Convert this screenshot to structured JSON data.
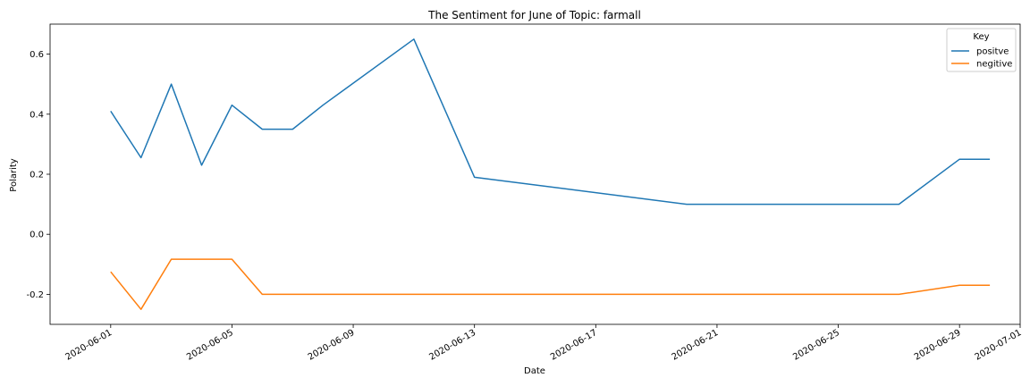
{
  "chart_data": {
    "type": "line",
    "title": "The Sentiment for June of Topic: farmall",
    "xlabel": "Date",
    "ylabel": "Polarity",
    "x_range": [
      "2020-05-30",
      "2020-07-01"
    ],
    "ylim": [
      -0.3,
      0.7
    ],
    "x_ticks": [
      "2020-06-01",
      "2020-06-05",
      "2020-06-09",
      "2020-06-13",
      "2020-06-17",
      "2020-06-21",
      "2020-06-25",
      "2020-06-29",
      "2020-07-01"
    ],
    "y_ticks": [
      -0.2,
      0.0,
      0.2,
      0.4,
      0.6
    ],
    "grid": false,
    "legend": {
      "title": "Key",
      "placement": "top-right"
    },
    "series": [
      {
        "name": "positve",
        "color": "#1f77b4",
        "points": [
          [
            "2020-06-01",
            0.41
          ],
          [
            "2020-06-02",
            0.255
          ],
          [
            "2020-06-03",
            0.5
          ],
          [
            "2020-06-04",
            0.23
          ],
          [
            "2020-06-05",
            0.43
          ],
          [
            "2020-06-06",
            0.35
          ],
          [
            "2020-06-07",
            0.35
          ],
          [
            "2020-06-08",
            0.43
          ],
          [
            "2020-06-11",
            0.65
          ],
          [
            "2020-06-13",
            0.19
          ],
          [
            "2020-06-20",
            0.1
          ],
          [
            "2020-06-27",
            0.1
          ],
          [
            "2020-06-29",
            0.25
          ],
          [
            "2020-06-30",
            0.25
          ]
        ]
      },
      {
        "name": "negitive",
        "color": "#ff7f0e",
        "points": [
          [
            "2020-06-01",
            -0.125
          ],
          [
            "2020-06-02",
            -0.25
          ],
          [
            "2020-06-03",
            -0.083
          ],
          [
            "2020-06-05",
            -0.083
          ],
          [
            "2020-06-06",
            -0.2
          ],
          [
            "2020-06-27",
            -0.2
          ],
          [
            "2020-06-29",
            -0.17
          ],
          [
            "2020-06-30",
            -0.17
          ]
        ]
      }
    ]
  }
}
